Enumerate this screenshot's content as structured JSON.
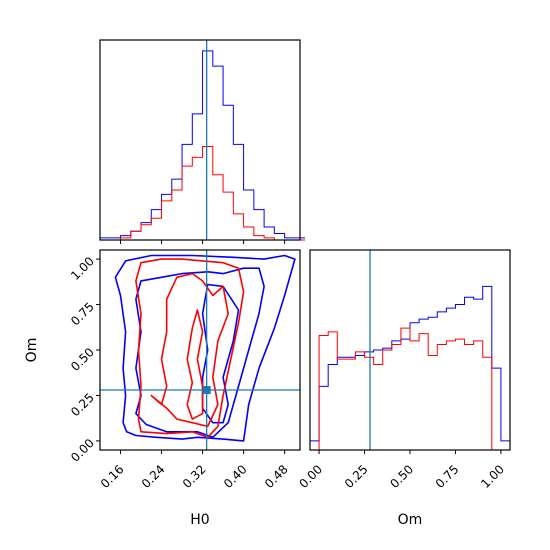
{
  "chart_data": [
    {
      "type": "histogram",
      "panel": "H0 marginal",
      "x": [
        0.12,
        0.14,
        0.16,
        0.18,
        0.2,
        0.22,
        0.24,
        0.26,
        0.28,
        0.3,
        0.32,
        0.34,
        0.36,
        0.38,
        0.4,
        0.42,
        0.44,
        0.46,
        0.48,
        0.5
      ],
      "series": [
        {
          "color": "#0000ff",
          "values": [
            1,
            1,
            2,
            4,
            8,
            14,
            21,
            28,
            44,
            58,
            87,
            80,
            62,
            44,
            23,
            14,
            6,
            3,
            1,
            1
          ]
        },
        {
          "color": "#ff0000",
          "values": [
            0,
            0,
            1,
            4,
            7,
            10,
            18,
            23,
            34,
            38,
            43,
            30,
            22,
            12,
            6,
            2,
            1,
            0,
            0,
            0
          ]
        }
      ],
      "truth": {
        "x": 0.328,
        "color": "#1f77b4"
      },
      "xlim": [
        0.12,
        0.51
      ],
      "xticks": [
        0.16,
        0.24,
        0.32,
        0.4,
        0.48
      ]
    },
    {
      "type": "contour",
      "panel": "H0 vs Om joint",
      "xlabel": "H0",
      "ylabel": "Om",
      "xlim": [
        0.12,
        0.51
      ],
      "ylim": [
        -0.05,
        1.05
      ],
      "xticks": [
        "0.16",
        "0.24",
        "0.32",
        "0.40",
        "0.48"
      ],
      "yticks": [
        "0.00",
        "0.25",
        "0.50",
        "0.75",
        "1.00"
      ],
      "contours": [
        {
          "color": "#0000ff",
          "level": "outer",
          "points": [
            [
              0.165,
              0.1
            ],
            [
              0.172,
              0.05
            ],
            [
              0.19,
              0.03
            ],
            [
              0.23,
              0.02
            ],
            [
              0.28,
              0.01
            ],
            [
              0.31,
              0.02
            ],
            [
              0.36,
              0.01
            ],
            [
              0.4,
              0.0
            ],
            [
              0.41,
              0.2
            ],
            [
              0.43,
              0.4
            ],
            [
              0.46,
              0.62
            ],
            [
              0.48,
              0.8
            ],
            [
              0.5,
              1.0
            ],
            [
              0.48,
              1.02
            ],
            [
              0.44,
              1.0
            ],
            [
              0.38,
              1.01
            ],
            [
              0.3,
              1.02
            ],
            [
              0.22,
              1.02
            ],
            [
              0.17,
              0.99
            ],
            [
              0.15,
              0.9
            ],
            [
              0.16,
              0.8
            ],
            [
              0.17,
              0.6
            ],
            [
              0.165,
              0.4
            ],
            [
              0.17,
              0.25
            ],
            [
              0.165,
              0.1
            ]
          ]
        },
        {
          "color": "#0000ff",
          "level": "inner",
          "points": [
            [
              0.19,
              0.15
            ],
            [
              0.21,
              0.09
            ],
            [
              0.25,
              0.05
            ],
            [
              0.31,
              0.05
            ],
            [
              0.34,
              0.02
            ],
            [
              0.37,
              0.1
            ],
            [
              0.39,
              0.3
            ],
            [
              0.41,
              0.5
            ],
            [
              0.43,
              0.7
            ],
            [
              0.44,
              0.85
            ],
            [
              0.43,
              0.95
            ],
            [
              0.4,
              0.95
            ],
            [
              0.36,
              0.92
            ],
            [
              0.33,
              0.93
            ],
            [
              0.28,
              0.92
            ],
            [
              0.24,
              0.9
            ],
            [
              0.2,
              0.88
            ],
            [
              0.19,
              0.78
            ],
            [
              0.2,
              0.6
            ],
            [
              0.19,
              0.4
            ],
            [
              0.2,
              0.25
            ],
            [
              0.19,
              0.15
            ]
          ]
        },
        {
          "color": "#0000ff",
          "level": "core",
          "points": [
            [
              0.32,
              0.18
            ],
            [
              0.34,
              0.1
            ],
            [
              0.36,
              0.1
            ],
            [
              0.37,
              0.2
            ],
            [
              0.36,
              0.35
            ],
            [
              0.38,
              0.55
            ],
            [
              0.39,
              0.72
            ],
            [
              0.36,
              0.85
            ],
            [
              0.33,
              0.86
            ],
            [
              0.32,
              0.7
            ],
            [
              0.33,
              0.5
            ],
            [
              0.32,
              0.35
            ],
            [
              0.32,
              0.18
            ]
          ]
        },
        {
          "color": "#ff0000",
          "level": "outer",
          "points": [
            [
              0.195,
              0.12
            ],
            [
              0.2,
              0.05
            ],
            [
              0.25,
              0.04
            ],
            [
              0.3,
              0.05
            ],
            [
              0.33,
              0.02
            ],
            [
              0.35,
              0.08
            ],
            [
              0.36,
              0.25
            ],
            [
              0.375,
              0.45
            ],
            [
              0.39,
              0.65
            ],
            [
              0.4,
              0.82
            ],
            [
              0.39,
              0.95
            ],
            [
              0.36,
              0.98
            ],
            [
              0.32,
              0.99
            ],
            [
              0.28,
              1.0
            ],
            [
              0.24,
              1.0
            ],
            [
              0.2,
              0.98
            ],
            [
              0.19,
              0.88
            ],
            [
              0.2,
              0.7
            ],
            [
              0.195,
              0.5
            ],
            [
              0.2,
              0.3
            ],
            [
              0.195,
              0.12
            ]
          ]
        },
        {
          "color": "#ff0000",
          "level": "inner",
          "points": [
            [
              0.22,
              0.25
            ],
            [
              0.24,
              0.2
            ],
            [
              0.25,
              0.3
            ],
            [
              0.24,
              0.45
            ],
            [
              0.25,
              0.6
            ],
            [
              0.25,
              0.78
            ],
            [
              0.27,
              0.9
            ],
            [
              0.3,
              0.92
            ],
            [
              0.32,
              0.88
            ],
            [
              0.34,
              0.8
            ],
            [
              0.36,
              0.85
            ],
            [
              0.37,
              0.7
            ],
            [
              0.35,
              0.55
            ],
            [
              0.34,
              0.35
            ],
            [
              0.35,
              0.2
            ],
            [
              0.33,
              0.08
            ],
            [
              0.3,
              0.1
            ],
            [
              0.27,
              0.12
            ],
            [
              0.25,
              0.18
            ],
            [
              0.22,
              0.25
            ]
          ]
        },
        {
          "color": "#ff0000",
          "level": "core",
          "points": [
            [
              0.29,
              0.2
            ],
            [
              0.3,
              0.12
            ],
            [
              0.32,
              0.15
            ],
            [
              0.32,
              0.3
            ],
            [
              0.31,
              0.45
            ],
            [
              0.32,
              0.6
            ],
            [
              0.31,
              0.72
            ],
            [
              0.3,
              0.62
            ],
            [
              0.29,
              0.45
            ],
            [
              0.3,
              0.32
            ],
            [
              0.29,
              0.2
            ]
          ]
        }
      ],
      "truth": {
        "x": 0.328,
        "y": 0.28,
        "color": "#1f77b4"
      }
    },
    {
      "type": "histogram",
      "panel": "Om marginal",
      "xlabel": "Om",
      "x": [
        -0.05,
        0.0,
        0.05,
        0.1,
        0.15,
        0.2,
        0.25,
        0.3,
        0.35,
        0.4,
        0.45,
        0.5,
        0.55,
        0.6,
        0.65,
        0.7,
        0.75,
        0.8,
        0.85,
        0.9,
        0.95,
        1.0,
        1.05
      ],
      "series": [
        {
          "color": "#0000ff",
          "values": [
            5,
            35,
            47,
            51,
            51,
            52,
            54,
            55,
            56,
            60,
            61,
            70,
            72,
            73,
            76,
            78,
            80,
            84,
            83,
            90,
            45,
            5
          ]
        },
        {
          "color": "#ff0000",
          "values": [
            0,
            63,
            65,
            50,
            50,
            54,
            51,
            47,
            55,
            58,
            67,
            60,
            64,
            52,
            58,
            60,
            61,
            58,
            60,
            51,
            0,
            0
          ]
        }
      ],
      "truth": {
        "x": 0.28,
        "color": "#1f77b4"
      },
      "xlim": [
        -0.05,
        1.05
      ],
      "xticks": [
        "0.00",
        "0.25",
        "0.50",
        "0.75",
        "1.00"
      ]
    }
  ]
}
